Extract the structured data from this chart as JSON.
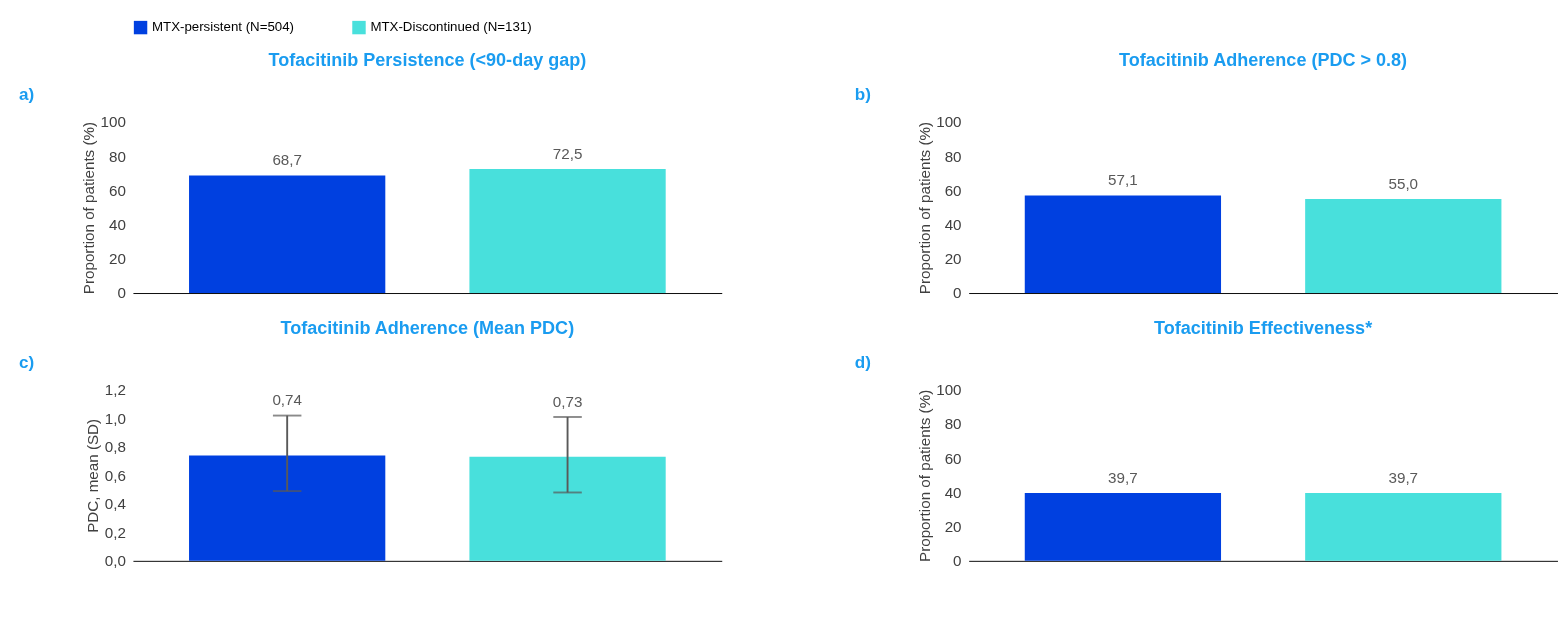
{
  "chart_data": [
    {
      "type": "bar",
      "title": "Tofacitinib Persistence (<90-day gap)",
      "annotations": [
        "a)"
      ],
      "ylabel": "Proportion of patients (%)",
      "categories": [
        null
      ],
      "legend": "top",
      "series": [
        {
          "name": "MTX-persistent (N=504)",
          "color": "#0040e0",
          "values": [
            68.7
          ],
          "value_labels": [
            "68,7"
          ]
        },
        {
          "name": "MTX-Discontinued (N=131)",
          "color": "#48e0dc",
          "values": [
            72.5
          ],
          "value_labels": [
            "72,5"
          ]
        }
      ],
      "ylim": [
        0,
        100
      ],
      "yticks": [
        0,
        20,
        40,
        60,
        80,
        100
      ]
    },
    {
      "type": "bar",
      "title": "Tofacitinib Adherence (PDC > 0.8)",
      "annotations": [
        "b)"
      ],
      "ylabel": "Proportion of patients (%)",
      "categories": [
        null
      ],
      "legend": "top",
      "series": [
        {
          "name": "MTX-persistent (N=504)",
          "color": "#0040e0",
          "values": [
            57.1
          ],
          "value_labels": [
            "57,1"
          ]
        },
        {
          "name": "MTX-Discontinued (N=131)",
          "color": "#48e0dc",
          "values": [
            55.0
          ],
          "value_labels": [
            "55,0"
          ]
        }
      ],
      "ylim": [
        0,
        100
      ],
      "yticks": [
        0,
        20,
        40,
        60,
        80,
        100
      ]
    },
    {
      "type": "bar",
      "title": "Tofacitinib Adherence (Mean PDC)",
      "annotations": [
        "c)"
      ],
      "ylabel": "PDC, mean (SD)",
      "categories": [
        null
      ],
      "legend": "top",
      "series": [
        {
          "name": "MTX-persistent (N=504)",
          "color": "#0040e0",
          "values": [
            0.74
          ],
          "value_labels": [
            "0,74"
          ],
          "errors": [
            [
              0.49,
              1.02
            ]
          ]
        },
        {
          "name": "MTX-Discontinued (N=131)",
          "color": "#48e0dc",
          "values": [
            0.73
          ],
          "value_labels": [
            "0,73"
          ],
          "errors": [
            [
              0.48,
              1.01
            ]
          ]
        }
      ],
      "ylim": [
        0,
        1.2
      ],
      "yticks": [
        {
          "value": 0,
          "label": "0,0"
        },
        {
          "value": 0.2,
          "label": "0,2"
        },
        {
          "value": 0.4,
          "label": "0,4"
        },
        {
          "value": 0.6,
          "label": "0,6"
        },
        {
          "value": 0.8,
          "label": "0,8"
        },
        {
          "value": 1.0,
          "label": "1,0"
        },
        {
          "value": 1.2,
          "label": "1,2"
        }
      ]
    },
    {
      "type": "bar",
      "title": "Tofacitinib Effectiveness*",
      "annotations": [
        "d)"
      ],
      "ylabel": "Proportion of patients (%)",
      "categories": [
        null
      ],
      "legend": "top",
      "series": [
        {
          "name": "MTX-persistent (N=504)",
          "color": "#0040e0",
          "values": [
            39.7
          ],
          "value_labels": [
            "39,7"
          ]
        },
        {
          "name": "MTX-Discontinued (N=131)",
          "color": "#48e0dc",
          "values": [
            39.7
          ],
          "value_labels": [
            "39,7"
          ]
        }
      ],
      "ylim": [
        0,
        100
      ],
      "yticks": [
        0,
        20,
        40,
        60,
        80,
        100
      ]
    }
  ]
}
